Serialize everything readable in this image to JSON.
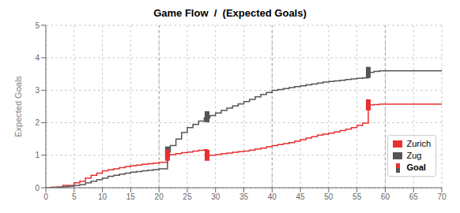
{
  "chart_data": {
    "type": "line",
    "title": "Game Flow  /  (Expected Goals)",
    "ylabel": "Expected Goals",
    "xlim": [
      0,
      70
    ],
    "ylim": [
      0,
      5
    ],
    "xticks": [
      0,
      5,
      10,
      15,
      20,
      25,
      30,
      35,
      40,
      45,
      50,
      55,
      60,
      65,
      70
    ],
    "yticks": [
      0,
      1,
      2,
      3,
      4,
      5
    ],
    "grid": true,
    "legend": "lower right",
    "line_style": "step",
    "vlines": [
      20,
      40,
      60
    ],
    "series": [
      {
        "name": "Zurich",
        "color": "#E83030",
        "x": [
          0,
          1,
          3,
          5,
          6,
          7,
          8,
          9,
          10,
          11,
          12,
          13,
          14,
          15,
          16,
          17,
          18,
          19,
          20,
          21.5,
          22,
          23,
          24,
          25,
          26,
          27,
          28,
          28.5,
          29,
          30,
          31,
          32,
          33,
          34,
          35,
          36,
          37,
          38,
          39,
          40,
          41,
          42,
          43,
          44,
          45,
          46,
          47,
          48,
          49,
          50,
          51,
          52,
          53,
          54,
          55,
          56,
          57,
          58,
          59,
          60,
          61,
          62,
          63,
          64,
          65,
          66,
          67,
          68,
          69,
          70
        ],
        "values": [
          0,
          0.02,
          0.07,
          0.15,
          0.2,
          0.3,
          0.38,
          0.45,
          0.52,
          0.55,
          0.58,
          0.62,
          0.65,
          0.68,
          0.7,
          0.72,
          0.74,
          0.76,
          0.78,
          1.0,
          1.02,
          1.05,
          1.08,
          1.1,
          1.13,
          1.15,
          1.17,
          1.0,
          1.0,
          1.02,
          1.05,
          1.07,
          1.09,
          1.11,
          1.13,
          1.16,
          1.19,
          1.22,
          1.26,
          1.3,
          1.33,
          1.36,
          1.39,
          1.43,
          1.48,
          1.53,
          1.57,
          1.62,
          1.65,
          1.68,
          1.72,
          1.76,
          1.8,
          1.85,
          1.92,
          1.99,
          2.55,
          2.56,
          2.57,
          2.57,
          2.57,
          2.57,
          2.57,
          2.57,
          2.57,
          2.57,
          2.57,
          2.57,
          2.57,
          2.57
        ]
      },
      {
        "name": "Zug",
        "color": "#555555",
        "x": [
          0,
          1,
          2,
          3,
          4,
          5,
          6,
          7,
          8,
          9,
          10,
          11,
          12,
          13,
          14,
          15,
          16,
          17,
          18,
          19,
          20,
          21.5,
          22,
          23,
          24,
          25,
          26,
          27,
          28,
          29,
          30,
          31,
          32,
          33,
          34,
          35,
          36,
          37,
          38,
          39,
          40,
          41,
          42,
          43,
          44,
          45,
          46,
          47,
          48,
          49,
          50,
          51,
          52,
          53,
          54,
          55,
          56,
          57,
          58,
          59,
          60,
          61,
          62,
          63,
          64,
          65,
          66,
          67,
          68,
          69,
          70
        ],
        "values": [
          0,
          0.0,
          0.02,
          0.03,
          0.05,
          0.07,
          0.1,
          0.15,
          0.2,
          0.25,
          0.3,
          0.35,
          0.38,
          0.42,
          0.45,
          0.48,
          0.5,
          0.52,
          0.54,
          0.56,
          0.58,
          1.1,
          1.3,
          1.5,
          1.7,
          1.85,
          1.95,
          2.05,
          2.15,
          2.22,
          2.3,
          2.38,
          2.45,
          2.52,
          2.58,
          2.65,
          2.72,
          2.8,
          2.87,
          2.93,
          3.0,
          3.02,
          3.05,
          3.08,
          3.11,
          3.14,
          3.17,
          3.19,
          3.22,
          3.25,
          3.27,
          3.29,
          3.31,
          3.33,
          3.35,
          3.37,
          3.38,
          3.55,
          3.58,
          3.6,
          3.6,
          3.6,
          3.6,
          3.6,
          3.6,
          3.6,
          3.6,
          3.6,
          3.6,
          3.6,
          3.6
        ]
      }
    ],
    "goals": [
      {
        "x": 21.5,
        "team": "Zurich",
        "values": [
          1.0,
          1.1
        ]
      },
      {
        "x": 28.5,
        "team": "Zug",
        "values": [
          1.0,
          2.185
        ]
      },
      {
        "x": 57,
        "team": "Zurich",
        "values": [
          2.55,
          3.55
        ]
      }
    ],
    "annotations": [
      {
        "text": "Goal"
      }
    ]
  }
}
